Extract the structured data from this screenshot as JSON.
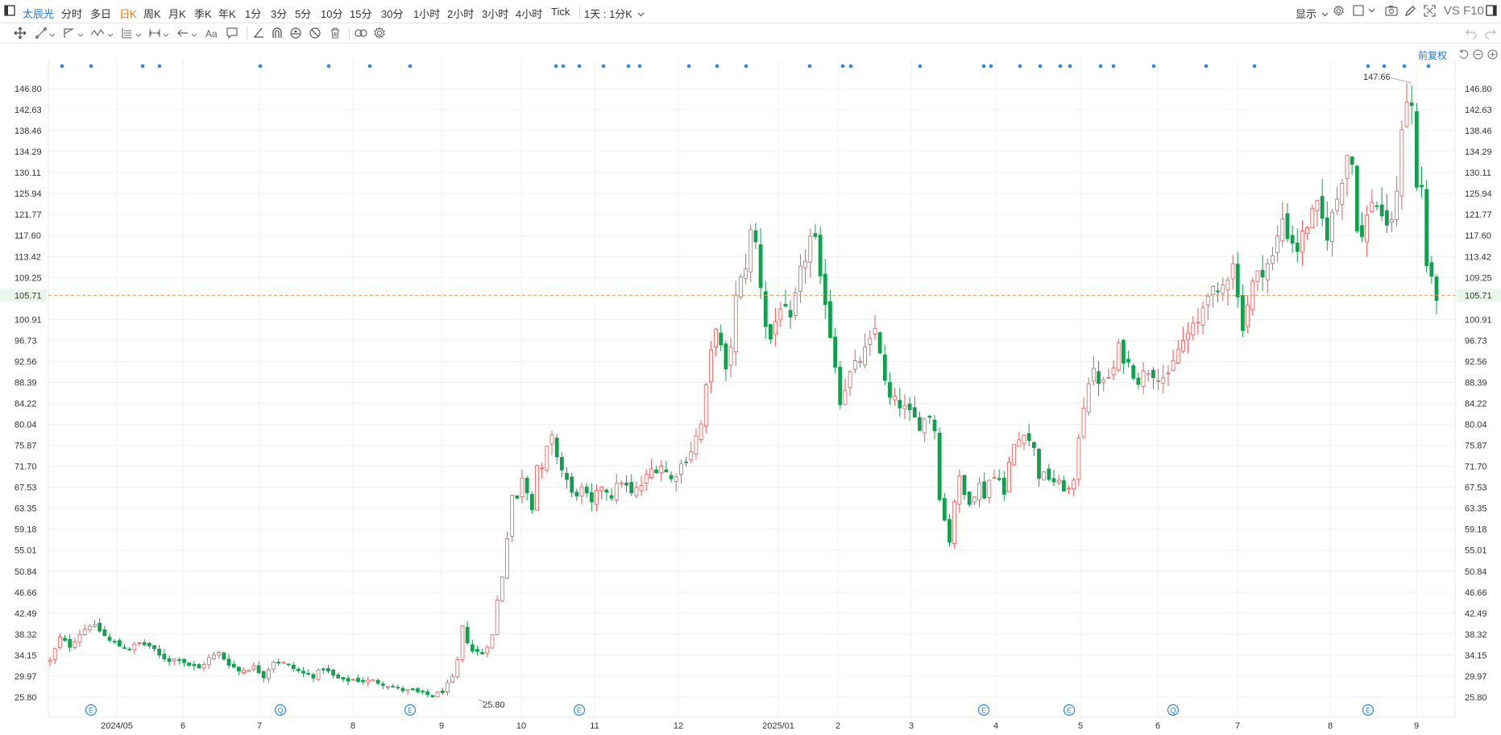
{
  "topbar": {
    "stock_name": "太辰光",
    "periods": [
      "分时",
      "多日",
      "日K",
      "周K",
      "月K",
      "季K",
      "年K",
      "1分",
      "3分",
      "5分",
      "10分",
      "15分",
      "30分",
      "1小时",
      "2小时",
      "3小时",
      "4小时",
      "Tick"
    ],
    "active_period": "日K",
    "cycle_label": "1天 : 1分K",
    "display_label": "显示",
    "vs_label": "VS",
    "f10_label": "F10"
  },
  "chart_header": {
    "restoration_label": "前复权"
  },
  "chart_data": {
    "type": "candlestick",
    "title": "",
    "y_ticks": [
      "146.80",
      "142.63",
      "138.46",
      "134.29",
      "130.11",
      "125.94",
      "121.77",
      "117.60",
      "113.42",
      "109.25",
      "105.71",
      "100.91",
      "96.73",
      "92.56",
      "88.39",
      "84.22",
      "80.04",
      "75.87",
      "71.70",
      "67.53",
      "63.35",
      "59.18",
      "55.01",
      "50.84",
      "46.66",
      "42.49",
      "38.32",
      "34.15",
      "29.97",
      "25.80"
    ],
    "x_ticks": [
      "2024/05",
      "6",
      "7",
      "8",
      "9",
      "10",
      "11",
      "12",
      "2025/01",
      "2",
      "3",
      "4",
      "5",
      "6",
      "7",
      "8",
      "9"
    ],
    "ylim": [
      24.0,
      150.0
    ],
    "current_price": "105.71",
    "current_price_value": 105.71,
    "max_label": "147.66",
    "min_label": "25.80",
    "event_markers": [
      {
        "label": "E",
        "x": "2024/05"
      },
      {
        "label": "Q",
        "x": "7"
      },
      {
        "label": "E",
        "x": "8"
      },
      {
        "label": "E",
        "x": "10"
      },
      {
        "label": "E",
        "x": "4"
      },
      {
        "label": "E",
        "x": "5"
      },
      {
        "label": "Q",
        "x": "6"
      },
      {
        "label": "E",
        "x": "8"
      }
    ],
    "price_path": [
      [
        0,
        33.0
      ],
      [
        2,
        37.5
      ],
      [
        4,
        36.0
      ],
      [
        6,
        38.5
      ],
      [
        8,
        40.3
      ],
      [
        10,
        39.0
      ],
      [
        12,
        37.0
      ],
      [
        14,
        36.0
      ],
      [
        16,
        35.5
      ],
      [
        18,
        36.5
      ],
      [
        20,
        36.0
      ],
      [
        22,
        34.0
      ],
      [
        24,
        33.2
      ],
      [
        26,
        33.5
      ],
      [
        28,
        32.2
      ],
      [
        30,
        31.5
      ],
      [
        32,
        33.5
      ],
      [
        34,
        34.5
      ],
      [
        36,
        32.5
      ],
      [
        38,
        31.0
      ],
      [
        41,
        31.8
      ],
      [
        43,
        30.0
      ],
      [
        45,
        33.0
      ],
      [
        47,
        32.5
      ],
      [
        49,
        31.5
      ],
      [
        51,
        30.5
      ],
      [
        53,
        30.0
      ],
      [
        55,
        31.5
      ],
      [
        57,
        30.0
      ],
      [
        59,
        29.0
      ],
      [
        61,
        29.3
      ],
      [
        63,
        29.0
      ],
      [
        65,
        29.0
      ],
      [
        67,
        28.5
      ],
      [
        69,
        27.8
      ],
      [
        71,
        27.2
      ],
      [
        73,
        27.0
      ],
      [
        75,
        26.5
      ],
      [
        77,
        26.0
      ],
      [
        79,
        27.0
      ],
      [
        81,
        29.5
      ],
      [
        82,
        33.0
      ],
      [
        83,
        39.5
      ],
      [
        84,
        37.0
      ],
      [
        85,
        35.0
      ],
      [
        87,
        34.5
      ],
      [
        89,
        38.0
      ],
      [
        90,
        45.0
      ],
      [
        91,
        50.0
      ],
      [
        92,
        58.0
      ],
      [
        93,
        66.0
      ],
      [
        94,
        65.0
      ],
      [
        95,
        70.0
      ],
      [
        96,
        67.0
      ],
      [
        97,
        64.0
      ],
      [
        98,
        72.0
      ],
      [
        99,
        70.5
      ],
      [
        100,
        75.0
      ],
      [
        101,
        77.0
      ],
      [
        102,
        74.0
      ],
      [
        103,
        71.0
      ],
      [
        104,
        69.0
      ],
      [
        105,
        66.0
      ],
      [
        107,
        67.0
      ],
      [
        109,
        64.0
      ],
      [
        111,
        68.0
      ],
      [
        113,
        66.0
      ],
      [
        115,
        69.0
      ],
      [
        117,
        66.0
      ],
      [
        119,
        68.0
      ],
      [
        121,
        71.0
      ],
      [
        123,
        72.0
      ],
      [
        125,
        69.0
      ],
      [
        127,
        72.0
      ],
      [
        129,
        75.0
      ],
      [
        131,
        80.0
      ],
      [
        133,
        94.0
      ],
      [
        134,
        100.0
      ],
      [
        135,
        95.0
      ],
      [
        136,
        90.0
      ],
      [
        137,
        96.0
      ],
      [
        138,
        105.0
      ],
      [
        140,
        112.0
      ],
      [
        141,
        118.0
      ],
      [
        142,
        116.0
      ],
      [
        143,
        108.0
      ],
      [
        144,
        100.0
      ],
      [
        145,
        97.0
      ],
      [
        147,
        104.0
      ],
      [
        149,
        100.0
      ],
      [
        151,
        110.0
      ],
      [
        153,
        117.0
      ],
      [
        154,
        116.0
      ],
      [
        155,
        108.0
      ],
      [
        156,
        105.0
      ],
      [
        157,
        98.0
      ],
      [
        158,
        92.0
      ],
      [
        159,
        85.0
      ],
      [
        161,
        90.0
      ],
      [
        163,
        93.0
      ],
      [
        165,
        96.0
      ],
      [
        166,
        99.0
      ],
      [
        167,
        95.0
      ],
      [
        168,
        88.0
      ],
      [
        169,
        85.0
      ],
      [
        171,
        84.0
      ],
      [
        173,
        82.0
      ],
      [
        175,
        80.0
      ],
      [
        177,
        82.0
      ],
      [
        178,
        79.0
      ],
      [
        179,
        66.0
      ],
      [
        180,
        61.0
      ],
      [
        181,
        57.0
      ],
      [
        182,
        65.0
      ],
      [
        183,
        69.0
      ],
      [
        184,
        66.0
      ],
      [
        185,
        65.0
      ],
      [
        187,
        68.0
      ],
      [
        188,
        66.0
      ],
      [
        189,
        69.0
      ],
      [
        191,
        70.0
      ],
      [
        192,
        66.0
      ],
      [
        193,
        72.0
      ],
      [
        194,
        76.0
      ],
      [
        195,
        77.0
      ],
      [
        196,
        79.0
      ],
      [
        197,
        77.0
      ],
      [
        198,
        75.0
      ],
      [
        199,
        70.0
      ],
      [
        201,
        69.5
      ],
      [
        203,
        68.0
      ],
      [
        205,
        67.0
      ],
      [
        206,
        68.0
      ],
      [
        207,
        78.0
      ],
      [
        208,
        84.0
      ],
      [
        209,
        89.0
      ],
      [
        210,
        90.0
      ],
      [
        212,
        88.0
      ],
      [
        214,
        91.0
      ],
      [
        215,
        95.0
      ],
      [
        217,
        92.0
      ],
      [
        219,
        89.0
      ],
      [
        221,
        91.0
      ],
      [
        223,
        90.0
      ],
      [
        225,
        89.0
      ],
      [
        227,
        95.0
      ],
      [
        229,
        98.0
      ],
      [
        231,
        100.0
      ],
      [
        233,
        107.0
      ],
      [
        235,
        105.0
      ],
      [
        237,
        110.0
      ],
      [
        238,
        113.0
      ],
      [
        239,
        105.0
      ],
      [
        240,
        100.0
      ],
      [
        242,
        108.0
      ],
      [
        244,
        111.0
      ],
      [
        246,
        113.0
      ],
      [
        248,
        121.0
      ],
      [
        249,
        118.0
      ],
      [
        251,
        115.0
      ],
      [
        253,
        120.0
      ],
      [
        255,
        123.0
      ],
      [
        257,
        118.0
      ],
      [
        259,
        125.0
      ],
      [
        261,
        134.0
      ],
      [
        262,
        132.0
      ],
      [
        263,
        120.0
      ],
      [
        264,
        117.0
      ],
      [
        266,
        125.0
      ],
      [
        268,
        122.0
      ],
      [
        269,
        118.0
      ],
      [
        271,
        125.0
      ],
      [
        272,
        140.0
      ],
      [
        273,
        145.0
      ],
      [
        274,
        143.0
      ],
      [
        275,
        127.0
      ],
      [
        276,
        127.5
      ],
      [
        277,
        112.0
      ],
      [
        278,
        108.0
      ],
      [
        279,
        105.7
      ]
    ]
  }
}
